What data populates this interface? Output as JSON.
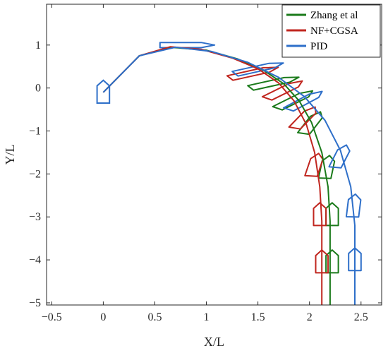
{
  "chart_data": {
    "type": "line",
    "title": "",
    "xlabel": "X/L",
    "ylabel": "Y/L",
    "xlim": [
      -0.55,
      2.7
    ],
    "ylim": [
      -5.05,
      1.95
    ],
    "xticks": [
      -0.5,
      0,
      0.5,
      1,
      1.5,
      2,
      2.5
    ],
    "xtick_labels": [
      "−0.5",
      "0",
      "0.5",
      "1",
      "1.5",
      "2",
      "2.5"
    ],
    "yticks": [
      1,
      0,
      -1,
      -2,
      -3,
      -4,
      -5
    ],
    "ytick_labels": [
      "1",
      "0",
      "−1",
      "−2",
      "−3",
      "−4",
      "−5"
    ],
    "grid": false,
    "legend_position": "top-right",
    "colors": {
      "Zhang et al": "#1a7a1a",
      "NF+CGSA": "#c0261f",
      "PID": "#2e6fc9"
    },
    "initial_ship": {
      "x": 0.0,
      "y": -0.1,
      "heading_deg": 0,
      "color": "#2e6fc9"
    },
    "series": [
      {
        "name": "Zhang et al",
        "x": [
          0.0,
          0.35,
          0.65,
          1.0,
          1.3,
          1.55,
          1.75,
          1.9,
          2.02,
          2.12,
          2.18,
          2.2,
          2.2,
          2.2
        ],
        "y": [
          -0.1,
          0.75,
          0.95,
          0.88,
          0.68,
          0.42,
          0.1,
          -0.3,
          -0.8,
          -1.5,
          -2.3,
          -3.1,
          -4.0,
          -5.05
        ],
        "ships": [
          {
            "x": 1.65,
            "y": 0.12,
            "heading_deg": 62
          },
          {
            "x": 1.85,
            "y": -0.28,
            "heading_deg": 40
          },
          {
            "x": 2.02,
            "y": -0.82,
            "heading_deg": 18
          },
          {
            "x": 2.17,
            "y": -1.85,
            "heading_deg": 5
          },
          {
            "x": 2.22,
            "y": -2.95,
            "heading_deg": 0
          },
          {
            "x": 2.22,
            "y": -4.05,
            "heading_deg": 0
          }
        ]
      },
      {
        "name": "NF+CGSA",
        "x": [
          0.0,
          0.35,
          0.65,
          0.95,
          1.25,
          1.5,
          1.7,
          1.85,
          1.97,
          2.05,
          2.1,
          2.12,
          2.12,
          2.12
        ],
        "y": [
          -0.1,
          0.75,
          0.96,
          0.9,
          0.7,
          0.45,
          0.12,
          -0.3,
          -0.85,
          -1.5,
          -2.3,
          -3.1,
          -4.0,
          -5.05
        ],
        "ships": [
          {
            "x": 1.45,
            "y": 0.35,
            "heading_deg": 62
          },
          {
            "x": 1.75,
            "y": -0.05,
            "heading_deg": 40
          },
          {
            "x": 1.95,
            "y": -0.7,
            "heading_deg": 22
          },
          {
            "x": 2.05,
            "y": -1.8,
            "heading_deg": 8
          },
          {
            "x": 2.1,
            "y": -2.95,
            "heading_deg": 0
          },
          {
            "x": 2.12,
            "y": -4.05,
            "heading_deg": 0
          }
        ]
      },
      {
        "name": "PID",
        "x": [
          0.0,
          0.35,
          0.7,
          1.05,
          1.4,
          1.7,
          1.95,
          2.15,
          2.3,
          2.4,
          2.44,
          2.44,
          2.44
        ],
        "y": [
          -0.1,
          0.75,
          0.95,
          0.85,
          0.6,
          0.25,
          -0.2,
          -0.75,
          -1.45,
          -2.3,
          -3.2,
          -4.1,
          -5.05
        ],
        "ships": [
          {
            "x": 0.8,
            "y": 1.0,
            "heading_deg": 90
          },
          {
            "x": 1.5,
            "y": 0.45,
            "heading_deg": 62
          },
          {
            "x": 1.95,
            "y": -0.3,
            "heading_deg": 38
          },
          {
            "x": 2.3,
            "y": -1.6,
            "heading_deg": 12
          },
          {
            "x": 2.43,
            "y": -2.75,
            "heading_deg": 3
          },
          {
            "x": 2.44,
            "y": -4.0,
            "heading_deg": 0
          }
        ]
      }
    ]
  }
}
